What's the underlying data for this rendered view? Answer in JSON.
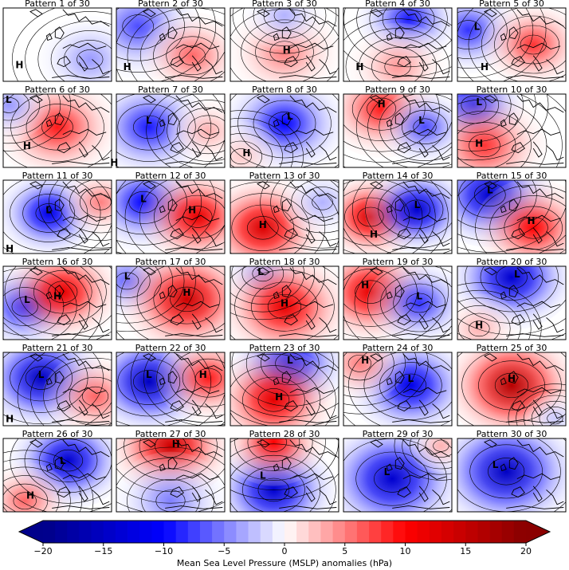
{
  "chart_data": {
    "type": "heatmap",
    "panel_titles": [
      "Pattern 1 of 30",
      "Pattern 2 of 30",
      "Pattern 3 of 30",
      "Pattern 4 of 30",
      "Pattern 5 of 30",
      "Pattern 6 of 30",
      "Pattern 7 of 30",
      "Pattern 8 of 30",
      "Pattern 9 of 30",
      "Pattern 10 of 30",
      "Pattern 11 of 30",
      "Pattern 12 of 30",
      "Pattern 13 of 30",
      "Pattern 14 of 30",
      "Pattern 15 of 30",
      "Pattern 16 of 30",
      "Pattern 17 of 30",
      "Pattern 18 of 30",
      "Pattern 19 of 30",
      "Pattern 20 of 30",
      "Pattern 21 of 30",
      "Pattern 22 of 30",
      "Pattern 23 of 30",
      "Pattern 24 of 30",
      "Pattern 25 of 30",
      "Pattern 26 of 30",
      "Pattern 27 of 30",
      "Pattern 28 of 30",
      "Pattern 29 of 30",
      "Pattern 30 of 30"
    ],
    "layout": {
      "rows": 6,
      "cols": 5
    },
    "colorbar": {
      "label": "Mean Sea Level Pressure (MSLP) anomalies (hPa)",
      "range": [
        -20,
        20
      ],
      "ticks": [
        -20,
        -15,
        -10,
        -5,
        0,
        5,
        10,
        15,
        20
      ],
      "extend": "both",
      "colormap": "seismic",
      "low_color": "#00008b",
      "high_color": "#8b0000"
    },
    "centers": [
      [
        {
          "label": "H",
          "type": "high",
          "pos": [
            0.15,
            0.82
          ]
        }
      ],
      [
        {
          "label": "H",
          "type": "high",
          "pos": [
            0.1,
            0.85
          ]
        }
      ],
      [
        {
          "label": "H",
          "type": "high",
          "pos": [
            0.52,
            0.62
          ]
        }
      ],
      [
        {
          "label": "H",
          "type": "high",
          "pos": [
            0.15,
            0.85
          ]
        }
      ],
      [
        {
          "label": "L",
          "type": "low",
          "pos": [
            0.18,
            0.3
          ]
        },
        {
          "label": "H",
          "type": "high",
          "pos": [
            0.25,
            0.85
          ]
        }
      ],
      [
        {
          "label": "L",
          "type": "low",
          "pos": [
            0.05,
            0.12
          ]
        },
        {
          "label": "H",
          "type": "high",
          "pos": [
            0.22,
            0.75
          ]
        }
      ],
      [
        {
          "label": "L",
          "type": "low",
          "pos": [
            0.3,
            0.4
          ]
        },
        {
          "label": "H",
          "type": "high",
          "pos": [
            -0.02,
            0.98
          ]
        }
      ],
      [
        {
          "label": "L",
          "type": "low",
          "pos": [
            0.55,
            0.35
          ]
        },
        {
          "label": "H",
          "type": "high",
          "pos": [
            0.15,
            0.85
          ]
        }
      ],
      [
        {
          "label": "L",
          "type": "low",
          "pos": [
            0.72,
            0.4
          ]
        },
        {
          "label": "H",
          "type": "high",
          "pos": [
            0.35,
            0.18
          ]
        }
      ],
      [
        {
          "label": "L",
          "type": "low",
          "pos": [
            0.2,
            0.15
          ]
        },
        {
          "label": "H",
          "type": "high",
          "pos": [
            0.2,
            0.72
          ]
        }
      ],
      [
        {
          "label": "L",
          "type": "low",
          "pos": [
            0.42,
            0.45
          ]
        },
        {
          "label": "H",
          "type": "high",
          "pos": [
            0.06,
            0.98
          ]
        }
      ],
      [
        {
          "label": "L",
          "type": "low",
          "pos": [
            0.25,
            0.3
          ]
        },
        {
          "label": "H",
          "type": "high",
          "pos": [
            0.7,
            0.45
          ]
        }
      ],
      [
        {
          "label": "H",
          "type": "high",
          "pos": [
            0.3,
            0.65
          ]
        }
      ],
      [
        {
          "label": "L",
          "type": "low",
          "pos": [
            0.68,
            0.38
          ]
        },
        {
          "label": "H",
          "type": "high",
          "pos": [
            0.28,
            0.78
          ]
        }
      ],
      [
        {
          "label": "L",
          "type": "low",
          "pos": [
            0.3,
            0.18
          ]
        },
        {
          "label": "H",
          "type": "high",
          "pos": [
            0.68,
            0.6
          ]
        }
      ],
      [
        {
          "label": "L",
          "type": "low",
          "pos": [
            0.22,
            0.5
          ]
        },
        {
          "label": "H",
          "type": "high",
          "pos": [
            0.5,
            0.45
          ]
        }
      ],
      [
        {
          "label": "L",
          "type": "low",
          "pos": [
            0.1,
            0.18
          ]
        },
        {
          "label": "H",
          "type": "high",
          "pos": [
            0.65,
            0.4
          ]
        }
      ],
      [
        {
          "label": "L",
          "type": "low",
          "pos": [
            0.28,
            0.12
          ]
        },
        {
          "label": "H",
          "type": "high",
          "pos": [
            0.5,
            0.55
          ]
        }
      ],
      [
        {
          "label": "L",
          "type": "low",
          "pos": [
            0.7,
            0.45
          ]
        },
        {
          "label": "H",
          "type": "high",
          "pos": [
            0.2,
            0.3
          ]
        }
      ],
      [
        {
          "label": "L",
          "type": "low",
          "pos": [
            0.55,
            0.15
          ]
        },
        {
          "label": "H",
          "type": "high",
          "pos": [
            0.2,
            0.85
          ]
        }
      ],
      [
        {
          "label": "L",
          "type": "low",
          "pos": [
            0.35,
            0.35
          ]
        },
        {
          "label": "H",
          "type": "high",
          "pos": [
            0.06,
            0.95
          ]
        }
      ],
      [
        {
          "label": "L",
          "type": "low",
          "pos": [
            0.3,
            0.35
          ]
        },
        {
          "label": "H",
          "type": "high",
          "pos": [
            0.8,
            0.35
          ]
        }
      ],
      [
        {
          "label": "L",
          "type": "low",
          "pos": [
            0.55,
            0.15
          ]
        },
        {
          "label": "H",
          "type": "high",
          "pos": [
            0.45,
            0.65
          ]
        }
      ],
      [
        {
          "label": "L",
          "type": "low",
          "pos": [
            0.62,
            0.4
          ]
        },
        {
          "label": "H",
          "type": "high",
          "pos": [
            0.2,
            0.15
          ]
        }
      ],
      [
        {
          "label": "H",
          "type": "high",
          "pos": [
            0.5,
            0.4
          ]
        }
      ],
      [
        {
          "label": "L",
          "type": "low",
          "pos": [
            0.55,
            0.35
          ]
        },
        {
          "label": "H",
          "type": "high",
          "pos": [
            0.25,
            0.82
          ]
        }
      ],
      [
        {
          "label": "H",
          "type": "high",
          "pos": [
            0.55,
            0.12
          ]
        }
      ],
      [
        {
          "label": "L",
          "type": "low",
          "pos": [
            0.3,
            0.55
          ]
        }
      ],
      [
        {
          "label": "L",
          "type": "low",
          "pos": [
            0.4,
            0.5
          ]
        }
      ],
      [
        {
          "label": "L",
          "type": "low",
          "pos": [
            0.35,
            0.4
          ]
        }
      ]
    ],
    "anomalies": [
      [
        [
          0.8,
          0.7,
          2.5,
          -4
        ]
      ],
      [
        [
          0.2,
          0.25,
          3,
          -7
        ],
        [
          0.7,
          0.65,
          2.5,
          6
        ]
      ],
      [
        [
          0.5,
          0.6,
          2.8,
          5
        ],
        [
          0.5,
          0.1,
          2,
          -3
        ]
      ],
      [
        [
          0.6,
          0.15,
          2.5,
          -9
        ],
        [
          0.5,
          0.8,
          2.5,
          4
        ]
      ],
      [
        [
          0.1,
          0.3,
          2.5,
          -8
        ],
        [
          0.7,
          0.5,
          2.5,
          8
        ]
      ],
      [
        [
          0.5,
          0.45,
          3,
          9
        ],
        [
          0.05,
          0.15,
          2,
          -4
        ]
      ],
      [
        [
          0.3,
          0.45,
          3,
          -9
        ],
        [
          0.85,
          0.5,
          2,
          3
        ]
      ],
      [
        [
          0.5,
          0.4,
          3,
          -10
        ],
        [
          0.1,
          0.85,
          2,
          2
        ]
      ],
      [
        [
          0.35,
          0.2,
          2.8,
          9
        ],
        [
          0.75,
          0.45,
          2.2,
          -7
        ]
      ],
      [
        [
          0.15,
          0.15,
          2.4,
          -12
        ],
        [
          0.25,
          0.7,
          3,
          8
        ]
      ],
      [
        [
          0.42,
          0.45,
          2.5,
          -12
        ],
        [
          0.9,
          0.3,
          2,
          5
        ]
      ],
      [
        [
          0.25,
          0.3,
          2.8,
          -10
        ],
        [
          0.75,
          0.5,
          2.8,
          12
        ]
      ],
      [
        [
          0.3,
          0.65,
          3,
          13
        ],
        [
          0.85,
          0.3,
          2,
          -3
        ]
      ],
      [
        [
          0.25,
          0.5,
          2.5,
          13
        ],
        [
          0.68,
          0.4,
          2.5,
          -14
        ]
      ],
      [
        [
          0.3,
          0.2,
          3,
          -14
        ],
        [
          0.7,
          0.65,
          2.8,
          10
        ]
      ],
      [
        [
          0.2,
          0.55,
          2.5,
          -10
        ],
        [
          0.55,
          0.35,
          2.8,
          12
        ]
      ],
      [
        [
          0.1,
          0.2,
          2.2,
          -6
        ],
        [
          0.65,
          0.45,
          3.2,
          14
        ]
      ],
      [
        [
          0.3,
          0.1,
          2,
          -4
        ],
        [
          0.5,
          0.55,
          3.2,
          12
        ]
      ],
      [
        [
          0.25,
          0.35,
          3,
          12
        ],
        [
          0.7,
          0.5,
          2.5,
          -8
        ]
      ],
      [
        [
          0.5,
          0.15,
          3,
          -14
        ],
        [
          0.2,
          0.85,
          2,
          3
        ]
      ],
      [
        [
          0.35,
          0.35,
          3,
          -15
        ],
        [
          0.85,
          0.6,
          2.5,
          6
        ]
      ],
      [
        [
          0.3,
          0.4,
          3,
          -15
        ],
        [
          0.85,
          0.35,
          2.5,
          9
        ]
      ],
      [
        [
          0.55,
          0.15,
          2.8,
          -12
        ],
        [
          0.4,
          0.65,
          3,
          12
        ]
      ],
      [
        [
          0.62,
          0.45,
          3,
          -12
        ],
        [
          0.15,
          0.15,
          2.2,
          5
        ]
      ],
      [
        [
          0.5,
          0.45,
          3.2,
          16
        ],
        [
          0.9,
          0.9,
          1.5,
          -2
        ]
      ],
      [
        [
          0.6,
          0.3,
          2.8,
          -14
        ],
        [
          0.2,
          0.85,
          2.2,
          6
        ]
      ],
      [
        [
          0.5,
          0.1,
          3,
          14
        ],
        [
          0.5,
          0.85,
          2.8,
          -5
        ]
      ],
      [
        [
          0.4,
          0.7,
          3,
          -14
        ],
        [
          0.4,
          0.05,
          2.5,
          10
        ]
      ],
      [
        [
          0.45,
          0.55,
          3.5,
          -14
        ],
        [
          0.9,
          0.1,
          1.5,
          3
        ]
      ],
      [
        [
          0.45,
          0.45,
          3.5,
          -15
        ]
      ]
    ]
  }
}
